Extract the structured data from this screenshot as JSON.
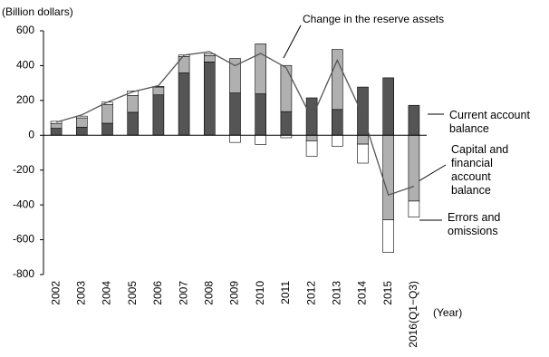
{
  "chart_data": {
    "type": "bar",
    "y_axis_label": "(Billion dollars)",
    "x_axis_label": "(Year)",
    "annotation": "Change in the reserve assets",
    "categories": [
      "2002",
      "2003",
      "2004",
      "2005",
      "2006",
      "2007",
      "2008",
      "2009",
      "2010",
      "2011",
      "2012",
      "2013",
      "2014",
      "2015",
      "2016(Q1−Q3)"
    ],
    "series": [
      {
        "name": "Current account balance",
        "color": "#555555",
        "values": [
          40,
          46,
          69,
          132,
          232,
          358,
          421,
          243,
          238,
          136,
          215,
          148,
          277,
          330,
          172
        ]
      },
      {
        "name": "Capital and financial account balance",
        "color": "#b0b0b0",
        "values": [
          28,
          54,
          108,
          97,
          45,
          94,
          37,
          198,
          287,
          265,
          -32,
          345,
          -51,
          -485,
          -378
        ]
      },
      {
        "name": "Errors and omissions",
        "color": "#ffffff",
        "values": [
          12,
          10,
          13,
          26,
          3,
          9,
          10,
          -41,
          -53,
          -14,
          -88,
          -63,
          -109,
          -188,
          -92
        ]
      },
      {
        "name": "Change in the reserve assets",
        "type": "line",
        "color": "#555555",
        "values": [
          75,
          117,
          190,
          250,
          285,
          460,
          480,
          400,
          470,
          388,
          97,
          431,
          115,
          -343,
          -293
        ]
      }
    ],
    "ylim": [
      -800,
      600
    ],
    "yticks": [
      -800,
      -600,
      -400,
      -200,
      0,
      200,
      400,
      600
    ]
  }
}
